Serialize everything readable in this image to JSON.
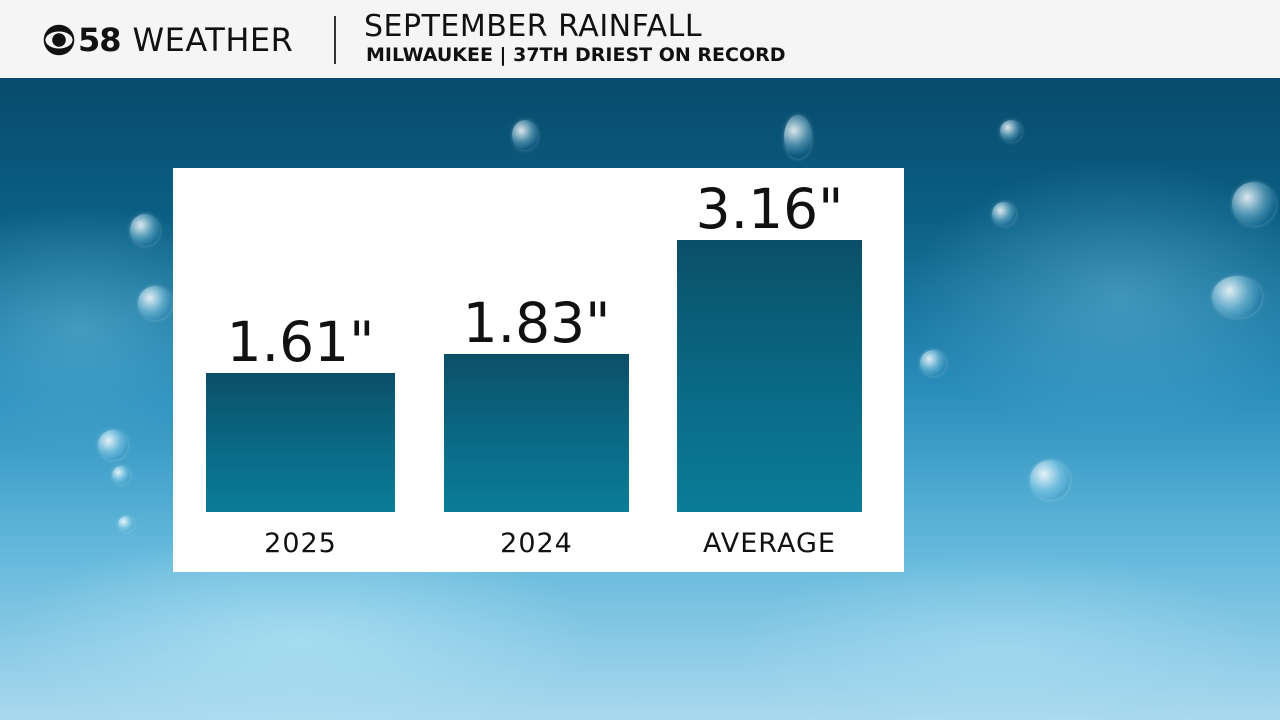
{
  "header": {
    "logo_number": "58",
    "logo_word": "WEATHER",
    "title": "SEPTEMBER RAINFALL",
    "subtitle": "MILWAUKEE | 37TH DRIEST ON RECORD"
  },
  "colors": {
    "bar": "#0a6a86",
    "header_bg": "#f5f5f5",
    "panel_bg": "#ffffff"
  },
  "chart_data": {
    "type": "bar",
    "categories": [
      "2025",
      "2024",
      "AVERAGE"
    ],
    "values": [
      1.61,
      1.83,
      3.16
    ],
    "value_labels": [
      "1.61\"",
      "1.83\"",
      "3.16\""
    ],
    "unit": "inches",
    "ylim": [
      0,
      3.5
    ],
    "grid": false
  }
}
